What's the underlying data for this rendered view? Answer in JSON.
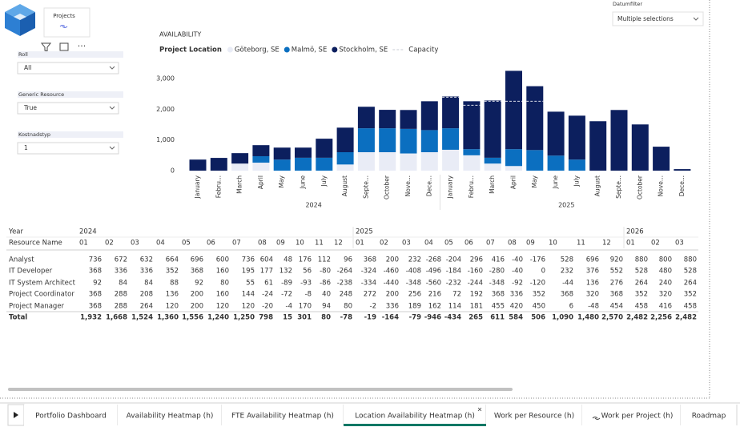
{
  "logo_card": {
    "title": "Projects"
  },
  "filters": [
    {
      "label": "Roll",
      "value": "All"
    },
    {
      "label": "Generic Resource",
      "value": "True"
    },
    {
      "label": "Kostnadstyp",
      "value": "1"
    }
  ],
  "date_filter": {
    "label": "Datumfilter",
    "value": "Multiple selections"
  },
  "chart_data": {
    "type": "bar",
    "stacked": true,
    "title": "AVAILABILITY",
    "legend_title": "Project Location",
    "categories": [
      "January",
      "Febru...",
      "March",
      "April",
      "May",
      "June",
      "July",
      "August",
      "Septe...",
      "October",
      "Nove...",
      "Dece...",
      "January",
      "Febru...",
      "March",
      "April",
      "May",
      "June",
      "July",
      "August",
      "Septe...",
      "October",
      "Nove...",
      "Dece..."
    ],
    "year_labels": [
      "2024",
      "2025"
    ],
    "series": [
      {
        "name": "Göteborg, SE",
        "color": "#e9ecf6",
        "values": [
          0,
          0,
          230,
          260,
          0,
          0,
          0,
          200,
          600,
          600,
          560,
          600,
          680,
          500,
          230,
          150,
          0,
          0,
          0,
          0,
          0,
          0,
          0,
          0
        ]
      },
      {
        "name": "Malmö, SE",
        "color": "#0b6fc0",
        "values": [
          0,
          0,
          0,
          210,
          360,
          420,
          420,
          400,
          780,
          780,
          800,
          720,
          700,
          200,
          190,
          550,
          670,
          490,
          360,
          0,
          0,
          0,
          0,
          0
        ]
      },
      {
        "name": "Stockholm, SE",
        "color": "#0c1f5e",
        "values": [
          360,
          415,
          340,
          360,
          390,
          330,
          620,
          800,
          700,
          600,
          615,
          940,
          1035,
          1560,
          1865,
          2550,
          2080,
          1430,
          1430,
          1610,
          1975,
          1505,
          780,
          50
        ]
      }
    ],
    "line_series": [
      {
        "name": "Capacity",
        "color": "#dde1ea",
        "values": [
          null,
          null,
          null,
          null,
          null,
          null,
          null,
          null,
          null,
          null,
          null,
          null,
          2390,
          2130,
          2260,
          2260,
          2260,
          null,
          null,
          null,
          null,
          null,
          null,
          null
        ]
      }
    ],
    "ylim": [
      0,
      3300
    ],
    "yticks": [
      0,
      {
        "value": 1000,
        "label": "1,000"
      },
      {
        "value": 2000,
        "label": "2,000"
      },
      {
        "value": 3000,
        "label": "3,000"
      }
    ],
    "grid": false
  },
  "table": {
    "year_header": "Year",
    "row_header": "Resource Name",
    "years": [
      {
        "label": "2024",
        "months": [
          "01",
          "02",
          "03",
          "04",
          "05",
          "06",
          "07",
          "08",
          "09",
          "10",
          "11",
          "12"
        ]
      },
      {
        "label": "2025",
        "months": [
          "01",
          "02",
          "03",
          "04",
          "05",
          "06",
          "07",
          "08",
          "09",
          "10",
          "11",
          "12"
        ]
      },
      {
        "label": "2026",
        "months": [
          "01",
          "02",
          "03"
        ]
      }
    ],
    "rows": [
      {
        "name": "Analyst",
        "values": [
          "736",
          "672",
          "632",
          "664",
          "696",
          "600",
          "736",
          "604",
          "48",
          "176",
          "112",
          "96",
          "368",
          "200",
          "232",
          "-268",
          "-204",
          "296",
          "416",
          "-40",
          "-176",
          "528",
          "696",
          "920",
          "880",
          "800",
          "880"
        ]
      },
      {
        "name": "IT Developer",
        "values": [
          "368",
          "336",
          "336",
          "352",
          "368",
          "160",
          "195",
          "177",
          "132",
          "56",
          "-80",
          "-264",
          "-324",
          "-460",
          "-408",
          "-496",
          "-184",
          "-160",
          "-280",
          "-40",
          "0",
          "232",
          "376",
          "552",
          "528",
          "480",
          "528"
        ]
      },
      {
        "name": "IT System Architect",
        "values": [
          "92",
          "84",
          "84",
          "88",
          "92",
          "80",
          "55",
          "61",
          "-89",
          "-93",
          "-86",
          "-238",
          "-334",
          "-440",
          "-348",
          "-560",
          "-232",
          "-244",
          "-348",
          "-92",
          "-120",
          "-44",
          "136",
          "276",
          "264",
          "240",
          "264"
        ]
      },
      {
        "name": "Project Coordinator",
        "values": [
          "368",
          "288",
          "208",
          "136",
          "200",
          "160",
          "144",
          "-24",
          "-72",
          "-8",
          "40",
          "248",
          "272",
          "200",
          "256",
          "216",
          "72",
          "192",
          "368",
          "336",
          "352",
          "368",
          "320",
          "368",
          "352",
          "320",
          "352"
        ]
      },
      {
        "name": "Project Manager",
        "values": [
          "368",
          "288",
          "264",
          "120",
          "200",
          "120",
          "120",
          "-20",
          "-4",
          "170",
          "94",
          "80",
          "-2",
          "336",
          "189",
          "162",
          "114",
          "181",
          "455",
          "420",
          "450",
          "6",
          "-48",
          "454",
          "458",
          "416",
          "458"
        ]
      }
    ],
    "total": {
      "name": "Total",
      "values": [
        "1,932",
        "1,668",
        "1,524",
        "1,360",
        "1,556",
        "1,240",
        "1,250",
        "798",
        "15",
        "301",
        "80",
        "-78",
        "-19",
        "-164",
        "-79",
        "-946",
        "-434",
        "265",
        "611",
        "584",
        "506",
        "1,090",
        "1,480",
        "2,570",
        "2,482",
        "2,256",
        "2,482"
      ]
    }
  },
  "tabs": [
    {
      "label": "Portfolio Dashboard",
      "active": false
    },
    {
      "label": "Availability Heatmap (h)",
      "active": false
    },
    {
      "label": "FTE Availability Heatmap (h)",
      "active": false
    },
    {
      "label": "Location Availability Heatmap (h)",
      "active": true
    },
    {
      "label": "Work per Resource (h)",
      "active": false
    },
    {
      "label": "Work per Project (h)",
      "active": false
    },
    {
      "label": "Roadmap",
      "active": false
    }
  ]
}
